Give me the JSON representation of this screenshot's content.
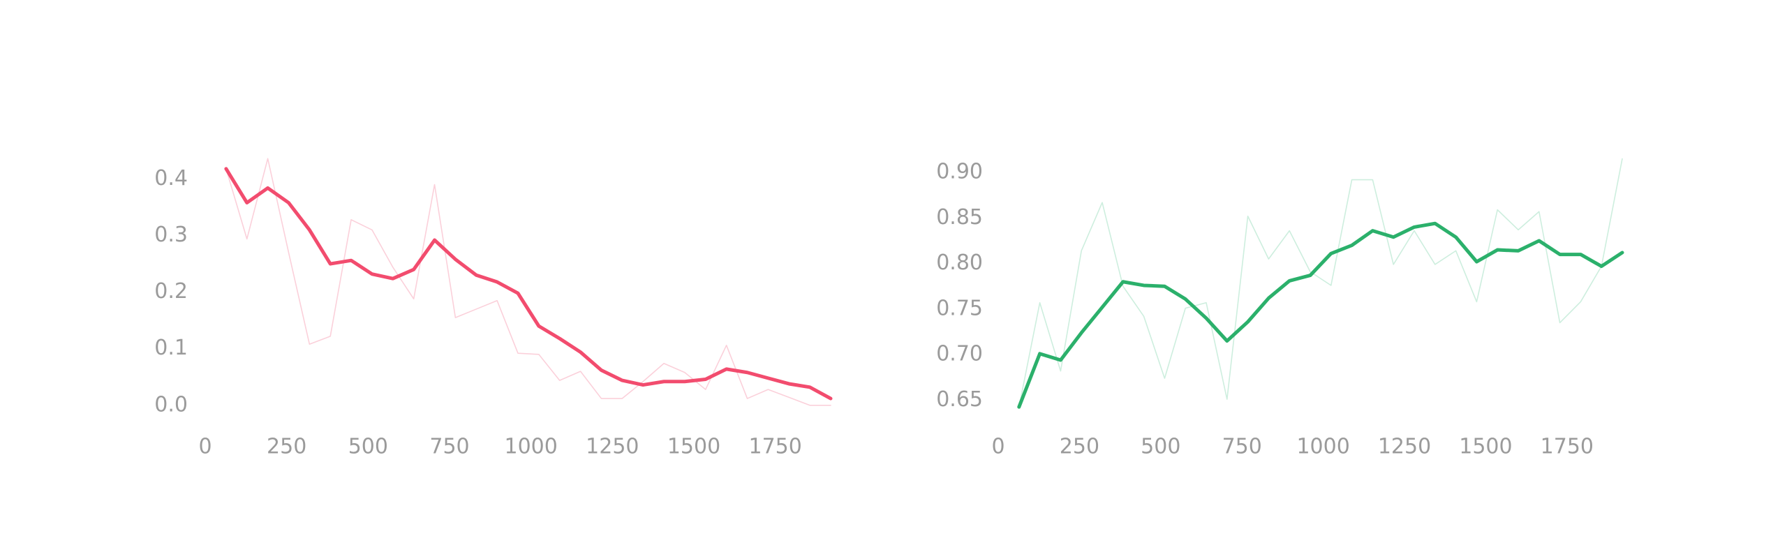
{
  "chart_data": [
    {
      "type": "line",
      "x": [
        64,
        128,
        192,
        256,
        320,
        384,
        448,
        512,
        576,
        640,
        704,
        768,
        832,
        896,
        960,
        1024,
        1088,
        1152,
        1216,
        1280,
        1344,
        1408,
        1472,
        1536,
        1600,
        1664,
        1728,
        1792,
        1856,
        1920
      ],
      "series": [
        {
          "color": "#fbd0da",
          "width": 1.6,
          "values": [
            0.418,
            0.294,
            0.436,
            0.27,
            0.108,
            0.122,
            0.328,
            0.31,
            0.244,
            0.188,
            0.39,
            0.155,
            0.17,
            0.185,
            0.092,
            0.09,
            0.044,
            0.06,
            0.012,
            0.012,
            0.042,
            0.074,
            0.058,
            0.028,
            0.106,
            0.012,
            0.028,
            0.014,
            0.0,
            0.0
          ]
        },
        {
          "color": "#f24c6e",
          "width": 5,
          "values": [
            0.418,
            0.358,
            0.384,
            0.358,
            0.31,
            0.25,
            0.256,
            0.232,
            0.224,
            0.24,
            0.292,
            0.258,
            0.23,
            0.218,
            0.198,
            0.14,
            0.118,
            0.094,
            0.062,
            0.044,
            0.036,
            0.042,
            0.042,
            0.046,
            0.064,
            0.058,
            0.048,
            0.038,
            0.032,
            0.012
          ]
        }
      ],
      "xlim": [
        0,
        1920
      ],
      "ylim": [
        -0.02,
        0.44
      ],
      "xticks": [
        0,
        250,
        500,
        750,
        1000,
        1250,
        1500,
        1750
      ],
      "yticks": [
        {
          "value": 0.0,
          "label": "0.0"
        },
        0.1,
        0.2,
        0.3,
        0.4
      ],
      "grid": false
    },
    {
      "type": "line",
      "x": [
        64,
        128,
        192,
        256,
        320,
        384,
        448,
        512,
        576,
        640,
        704,
        768,
        832,
        896,
        960,
        1024,
        1088,
        1152,
        1216,
        1280,
        1344,
        1408,
        1472,
        1536,
        1600,
        1664,
        1728,
        1792,
        1856,
        1920
      ],
      "series": [
        {
          "color": "#cdeede",
          "width": 1.6,
          "values": [
            0.6425,
            0.757,
            0.682,
            0.814,
            0.867,
            0.775,
            0.742,
            0.674,
            0.751,
            0.757,
            0.651,
            0.852,
            0.805,
            0.836,
            0.791,
            0.776,
            0.892,
            0.892,
            0.799,
            0.836,
            0.799,
            0.814,
            0.758,
            0.859,
            0.837,
            0.857,
            0.735,
            0.758,
            0.797,
            0.915
          ]
        },
        {
          "color": "#2bb06b",
          "width": 5,
          "values": [
            0.6425,
            0.701,
            0.694,
            0.724,
            0.752,
            0.78,
            0.776,
            0.775,
            0.761,
            0.74,
            0.715,
            0.736,
            0.762,
            0.781,
            0.787,
            0.811,
            0.82,
            0.836,
            0.829,
            0.84,
            0.844,
            0.829,
            0.802,
            0.815,
            0.814,
            0.825,
            0.81,
            0.81,
            0.797,
            0.812
          ]
        }
      ],
      "xlim": [
        0,
        1920
      ],
      "ylim": [
        0.635,
        0.92
      ],
      "xticks": [
        0,
        250,
        500,
        750,
        1000,
        1250,
        1500,
        1750
      ],
      "yticks": [
        {
          "value": 0.65,
          "label": "0.65"
        },
        {
          "value": 0.7,
          "label": "0.70"
        },
        0.75,
        {
          "value": 0.8,
          "label": "0.80"
        },
        0.85,
        {
          "value": 0.9,
          "label": "0.90"
        }
      ],
      "grid": false
    }
  ]
}
